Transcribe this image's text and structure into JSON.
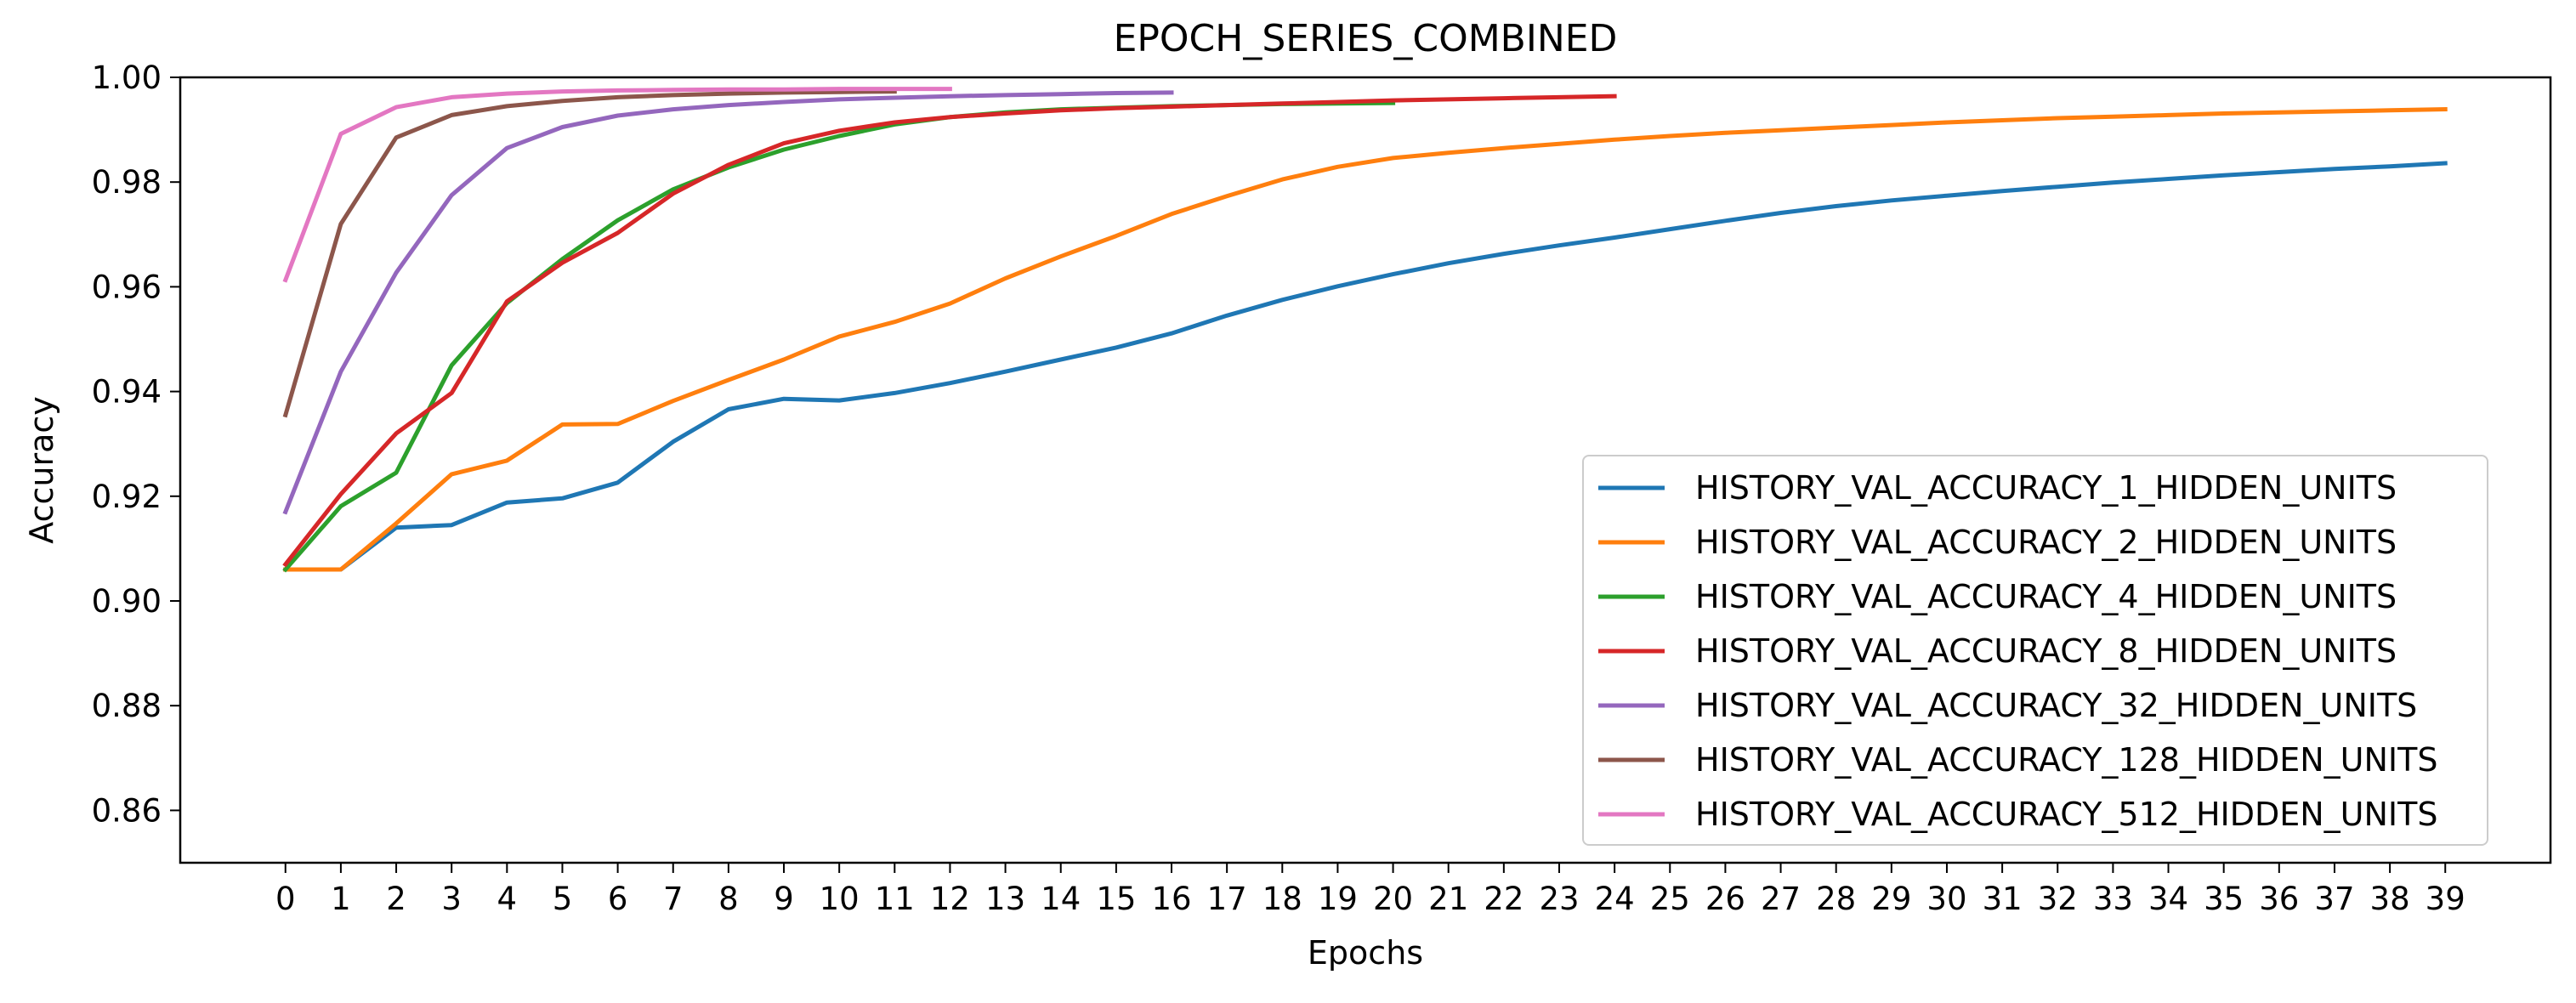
{
  "chart_data": {
    "type": "line",
    "title": "EPOCH_SERIES_COMBINED",
    "xlabel": "Epochs",
    "ylabel": "Accuracy",
    "xlim": [
      -1.9,
      40.9
    ],
    "ylim": [
      0.85,
      1.0
    ],
    "x_ticks": [
      "0",
      "1",
      "2",
      "3",
      "4",
      "5",
      "6",
      "7",
      "8",
      "9",
      "10",
      "11",
      "12",
      "13",
      "14",
      "15",
      "16",
      "17",
      "18",
      "19",
      "20",
      "21",
      "22",
      "23",
      "24",
      "25",
      "26",
      "27",
      "28",
      "29",
      "30",
      "31",
      "32",
      "33",
      "34",
      "35",
      "36",
      "37",
      "38",
      "39"
    ],
    "y_ticks": [
      "0.86",
      "0.88",
      "0.90",
      "0.92",
      "0.94",
      "0.96",
      "0.98",
      "1.00"
    ],
    "grid": false,
    "legend_position": "lower right",
    "series": [
      {
        "name": "HISTORY_VAL_ACCURACY_1_HIDDEN_UNITS",
        "color": "#1f77b4",
        "values": [
          0.906,
          0.906,
          0.914,
          0.9145,
          0.9188,
          0.9196,
          0.9226,
          0.9304,
          0.9366,
          0.9386,
          0.9383,
          0.9397,
          0.9416,
          0.9438,
          0.9461,
          0.9484,
          0.9511,
          0.9545,
          0.9575,
          0.9601,
          0.9624,
          0.9645,
          0.9663,
          0.9679,
          0.9694,
          0.971,
          0.9726,
          0.9741,
          0.9754,
          0.9765,
          0.9774,
          0.9783,
          0.9791,
          0.9799,
          0.9806,
          0.9813,
          0.9819,
          0.9825,
          0.983,
          0.9836
        ]
      },
      {
        "name": "HISTORY_VAL_ACCURACY_2_HIDDEN_UNITS",
        "color": "#ff7f0e",
        "values": [
          0.906,
          0.906,
          0.9148,
          0.9242,
          0.9268,
          0.9337,
          0.9338,
          0.9382,
          0.9422,
          0.9461,
          0.9505,
          0.9533,
          0.9568,
          0.9616,
          0.9658,
          0.9697,
          0.9739,
          0.9773,
          0.9805,
          0.9829,
          0.9846,
          0.9856,
          0.9865,
          0.9873,
          0.9881,
          0.9888,
          0.9894,
          0.9899,
          0.9904,
          0.9909,
          0.9914,
          0.9918,
          0.9922,
          0.9925,
          0.9928,
          0.9931,
          0.9933,
          0.9935,
          0.9937,
          0.9939
        ]
      },
      {
        "name": "HISTORY_VAL_ACCURACY_4_HIDDEN_UNITS",
        "color": "#2ca02c",
        "values": [
          0.906,
          0.9181,
          0.9245,
          0.945,
          0.9569,
          0.9653,
          0.9727,
          0.9786,
          0.9828,
          0.9862,
          0.9888,
          0.991,
          0.9924,
          0.9933,
          0.9939,
          0.9942,
          0.9945,
          0.9947,
          0.9949,
          0.995,
          0.9951
        ]
      },
      {
        "name": "HISTORY_VAL_ACCURACY_8_HIDDEN_UNITS",
        "color": "#d62728",
        "values": [
          0.907,
          0.9204,
          0.932,
          0.9397,
          0.9572,
          0.9646,
          0.9703,
          0.9778,
          0.9833,
          0.9874,
          0.9898,
          0.9914,
          0.9924,
          0.9931,
          0.9937,
          0.9941,
          0.9944,
          0.9947,
          0.995,
          0.9953,
          0.9956,
          0.9958,
          0.996,
          0.9962,
          0.9964
        ]
      },
      {
        "name": "HISTORY_VAL_ACCURACY_32_HIDDEN_UNITS",
        "color": "#9467bd",
        "values": [
          0.917,
          0.9438,
          0.9627,
          0.9775,
          0.9865,
          0.9905,
          0.9927,
          0.9939,
          0.9947,
          0.9953,
          0.9958,
          0.9961,
          0.9964,
          0.9966,
          0.9968,
          0.997,
          0.9971
        ]
      },
      {
        "name": "HISTORY_VAL_ACCURACY_128_HIDDEN_UNITS",
        "color": "#8c564b",
        "values": [
          0.9355,
          0.972,
          0.9885,
          0.9928,
          0.9945,
          0.9955,
          0.9962,
          0.9966,
          0.9969,
          0.9971,
          0.9972,
          0.9973
        ]
      },
      {
        "name": "HISTORY_VAL_ACCURACY_512_HIDDEN_UNITS",
        "color": "#e377c2",
        "values": [
          0.9613,
          0.9892,
          0.9943,
          0.9962,
          0.9969,
          0.9973,
          0.9975,
          0.9976,
          0.9977,
          0.9977,
          0.9978,
          0.9978,
          0.9978
        ]
      }
    ]
  }
}
